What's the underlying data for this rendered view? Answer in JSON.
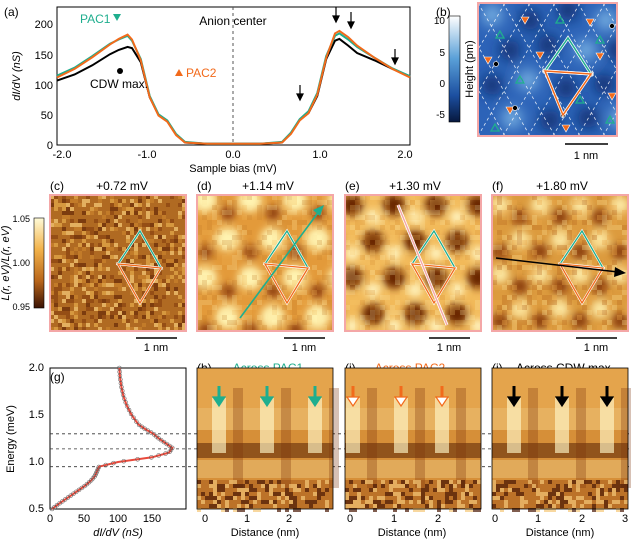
{
  "panels": {
    "a": {
      "label": "(a)",
      "ylabel": "dI/dV (nS)",
      "xlabel": "Sample bias (mV)",
      "annotation": "Anion center",
      "series_labels": {
        "pac1": "PAC1",
        "pac2": "PAC2",
        "cdw": "CDW max."
      },
      "xticks": [
        "-2.0",
        "-1.0",
        "0.0",
        "1.0",
        "2.0"
      ],
      "yticks": [
        "0",
        "50",
        "100",
        "150",
        "200"
      ]
    },
    "b": {
      "label": "(b)",
      "colorbar_label": "Height (pm)",
      "colorbar_ticks": [
        "10",
        "5",
        "0",
        "-5"
      ],
      "scalebar": "1 nm"
    },
    "maps": [
      {
        "label": "(c)",
        "title": "+0.72 mV",
        "scalebar": "1 nm"
      },
      {
        "label": "(d)",
        "title": "+1.14 mV",
        "scalebar": "1 nm"
      },
      {
        "label": "(e)",
        "title": "+1.30 mV",
        "scalebar": "1 nm"
      },
      {
        "label": "(f)",
        "title": "+1.80 mV",
        "scalebar": "1 nm"
      }
    ],
    "map_colorbar": {
      "label": "L(r, eV)/L(r, eV)",
      "ticks": [
        "1.05",
        "1.00",
        "0.95"
      ]
    },
    "g": {
      "label": "(g)",
      "ylabel": "Energy (meV)",
      "xlabel": "dI/dV (nS)",
      "yticks": [
        "0.5",
        "1.0",
        "1.5",
        "2.0"
      ],
      "xticks": [
        "0",
        "50",
        "100",
        "150"
      ]
    },
    "line_cuts": [
      {
        "label": "(h)",
        "title": "Across PAC1",
        "xlabel": "Distance (nm)",
        "xticks": [
          "0",
          "1",
          "2"
        ]
      },
      {
        "label": "(i)",
        "title": "Across PAC2",
        "xlabel": "Distance (nm)",
        "xticks": [
          "0",
          "1",
          "2"
        ]
      },
      {
        "label": "(j)",
        "title": "Across CDW max.",
        "xlabel": "Distance (nm)",
        "xticks": [
          "0",
          "1",
          "2",
          "3"
        ]
      }
    ]
  },
  "colors": {
    "pac1": "#1fae8e",
    "pac2": "#f26a1b",
    "cdw": "#000000",
    "frame": "#f4a7a7"
  },
  "chart_data": [
    {
      "type": "line",
      "x": [
        -2.0,
        -1.8,
        -1.6,
        -1.4,
        -1.3,
        -1.2,
        -1.15,
        -1.05,
        -0.95,
        -0.85,
        -0.75,
        -0.65,
        -0.55,
        -0.3,
        0.0,
        0.3,
        0.55,
        0.65,
        0.75,
        0.85,
        0.95,
        1.05,
        1.15,
        1.2,
        1.3,
        1.4,
        1.6,
        1.8,
        2.0
      ],
      "series": [
        {
          "name": "PAC1",
          "values": [
            113,
            126,
            145,
            165,
            172,
            178,
            170,
            140,
            80,
            50,
            40,
            18,
            5,
            2,
            2,
            2,
            5,
            20,
            42,
            55,
            85,
            145,
            178,
            182,
            172,
            160,
            142,
            125,
            112
          ]
        },
        {
          "name": "PAC2",
          "values": [
            110,
            124,
            143,
            164,
            173,
            180,
            172,
            138,
            78,
            48,
            38,
            16,
            4,
            2,
            2,
            2,
            4,
            18,
            40,
            52,
            82,
            142,
            182,
            186,
            176,
            162,
            142,
            124,
            110
          ]
        },
        {
          "name": "CDW max.",
          "values": [
            105,
            115,
            130,
            148,
            155,
            160,
            158,
            135,
            78,
            49,
            39,
            17,
            4,
            2,
            2,
            2,
            4,
            19,
            41,
            52,
            80,
            140,
            170,
            173,
            162,
            150,
            138,
            124,
            112
          ]
        }
      ],
      "xlabel": "Sample bias (mV)",
      "ylabel": "dI/dV (nS)",
      "xlim": [
        -2.0,
        2.0
      ],
      "ylim": [
        0,
        225
      ]
    },
    {
      "type": "line",
      "y": [
        0.5,
        0.55,
        0.6,
        0.65,
        0.7,
        0.75,
        0.8,
        0.85,
        0.9,
        0.95,
        1.0,
        1.05,
        1.1,
        1.15,
        1.2,
        1.25,
        1.3,
        1.35,
        1.4,
        1.5,
        1.6,
        1.7,
        1.8,
        1.9,
        2.0
      ],
      "values": [
        3,
        12,
        22,
        32,
        42,
        52,
        60,
        66,
        69,
        72,
        100,
        150,
        175,
        180,
        170,
        160,
        152,
        140,
        130,
        120,
        113,
        108,
        105,
        103,
        102
      ],
      "xlabel": "dI/dV (nS)",
      "ylabel": "Energy (meV)",
      "xlim": [
        0,
        200
      ],
      "ylim": [
        0.5,
        2.0
      ],
      "reference_lines": [
        0.95,
        1.14,
        1.3
      ]
    }
  ]
}
